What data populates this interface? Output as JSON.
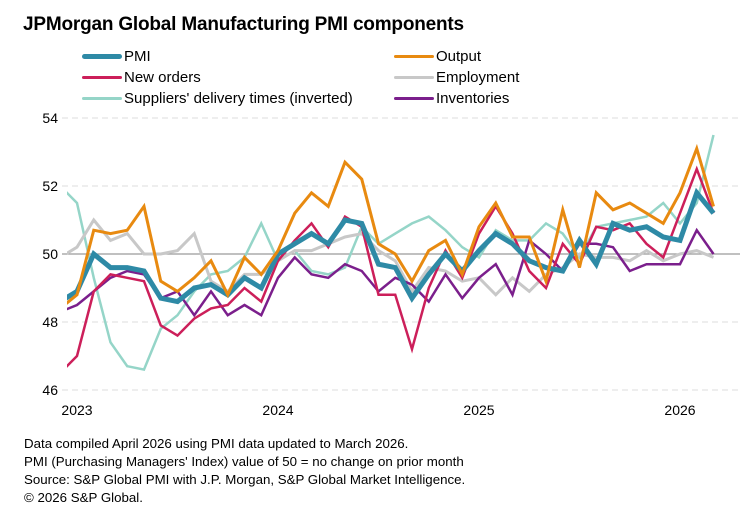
{
  "chart_data": {
    "type": "line",
    "title": "JPMorgan Global Manufacturing PMI components",
    "xlabel": "",
    "ylabel": "",
    "ylim": [
      46,
      54
    ],
    "yticks": [
      "46",
      "48",
      "50",
      "52",
      "54"
    ],
    "xticks": [
      "2023",
      "2024",
      "2025",
      "2026"
    ],
    "grid": true,
    "legend": "top",
    "x": [
      "Dec 2022",
      "Jan 2023",
      "Feb 2023",
      "Mar 2023",
      "Apr 2023",
      "May 2023",
      "Jun 2023",
      "Jul 2023",
      "Aug 2023",
      "Sep 2023",
      "Oct 2023",
      "Nov 2023",
      "Dec 2023",
      "Jan 2024",
      "Feb 2024",
      "Mar 2024",
      "Apr 2024",
      "May 2024",
      "Jun 2024",
      "Jul 2024",
      "Aug 2024",
      "Sep 2024",
      "Oct 2024",
      "Nov 2024",
      "Dec 2024",
      "Jan 2025",
      "Feb 2025",
      "Mar 2025",
      "Apr 2025",
      "May 2025",
      "Jun 2025",
      "Jul 2025",
      "Aug 2025",
      "Sep 2025",
      "Oct 2025",
      "Nov 2025",
      "Dec 2025",
      "Jan 2026",
      "Feb 2026",
      "Mar 2026"
    ],
    "series": [
      {
        "name": "PMI",
        "color": "#2e8aa6",
        "width": 5,
        "values": [
          48.6,
          48.9,
          50.0,
          49.6,
          49.6,
          49.5,
          48.7,
          48.6,
          49.0,
          49.1,
          48.8,
          49.3,
          49.0,
          50.0,
          50.3,
          50.6,
          50.3,
          51.0,
          50.9,
          49.7,
          49.6,
          48.7,
          49.4,
          50.0,
          49.5,
          50.1,
          50.6,
          50.3,
          49.8,
          49.6,
          49.5,
          50.4,
          49.7,
          50.9,
          50.7,
          50.8,
          50.5,
          50.4,
          51.8,
          51.2
        ]
      },
      {
        "name": "Output",
        "color": "#e88a10",
        "width": 3,
        "values": [
          48.4,
          48.8,
          50.7,
          50.6,
          50.7,
          51.4,
          49.2,
          48.9,
          49.3,
          49.8,
          48.8,
          49.9,
          49.4,
          50.1,
          51.2,
          51.8,
          51.4,
          52.7,
          52.2,
          50.3,
          50.0,
          49.2,
          50.1,
          50.4,
          49.4,
          50.8,
          51.5,
          50.5,
          50.5,
          49.2,
          51.3,
          49.6,
          51.8,
          51.3,
          51.5,
          51.2,
          50.9,
          51.8,
          53.1,
          51.4
        ]
      },
      {
        "name": "New orders",
        "color": "#cc1f5a",
        "width": 2.5,
        "values": [
          46.5,
          47.0,
          48.9,
          49.4,
          49.3,
          49.2,
          47.9,
          47.6,
          48.1,
          48.4,
          48.5,
          49.0,
          48.6,
          49.8,
          50.4,
          50.9,
          50.2,
          51.1,
          50.8,
          48.8,
          48.8,
          47.2,
          49.0,
          50.1,
          49.3,
          50.6,
          51.4,
          50.6,
          49.5,
          49.0,
          50.3,
          49.7,
          50.8,
          50.7,
          50.9,
          50.3,
          49.9,
          51.2,
          52.5,
          51.2
        ]
      },
      {
        "name": "Employment",
        "color": "#c8c8c8",
        "width": 3,
        "values": [
          49.9,
          50.2,
          51.0,
          50.4,
          50.6,
          50.0,
          50.0,
          50.1,
          50.6,
          49.2,
          48.9,
          49.4,
          49.4,
          49.8,
          50.1,
          50.1,
          50.3,
          50.5,
          50.6,
          50.1,
          49.8,
          48.9,
          49.6,
          49.5,
          49.2,
          49.3,
          48.8,
          49.3,
          48.9,
          49.4,
          49.6,
          50.0,
          49.9,
          49.9,
          49.8,
          50.1,
          49.8,
          50.0,
          50.1,
          49.9
        ]
      },
      {
        "name": "Suppliers' delivery times (inverted)",
        "color": "#95d5c8",
        "width": 2.5,
        "values": [
          52.0,
          51.5,
          49.3,
          47.4,
          46.7,
          46.6,
          47.8,
          48.2,
          48.9,
          49.4,
          49.5,
          49.9,
          50.9,
          49.8,
          50.1,
          49.5,
          49.4,
          49.6,
          50.8,
          50.3,
          50.6,
          50.9,
          51.1,
          50.7,
          50.2,
          49.9,
          50.7,
          50.4,
          50.4,
          50.9,
          50.6,
          49.9,
          50.8,
          50.9,
          51.0,
          51.1,
          51.5,
          50.9,
          51.5,
          53.5
        ]
      },
      {
        "name": "Inventories",
        "color": "#7b1f8c",
        "width": 2.5,
        "values": [
          48.3,
          48.5,
          48.9,
          49.3,
          49.5,
          49.4,
          48.7,
          48.9,
          48.2,
          48.9,
          48.2,
          48.5,
          48.2,
          49.3,
          49.9,
          49.4,
          49.3,
          49.7,
          49.5,
          48.9,
          49.3,
          49.1,
          48.6,
          49.4,
          48.7,
          49.3,
          49.7,
          48.8,
          50.4,
          50.0,
          49.5,
          50.3,
          50.3,
          50.2,
          49.5,
          49.7,
          49.7,
          49.7,
          50.7,
          50.0
        ]
      }
    ]
  },
  "legend_columns": [
    [
      "PMI",
      "New orders",
      "Suppliers' delivery times (inverted)"
    ],
    [
      "Output",
      "Employment",
      "Inventories"
    ]
  ],
  "notes": [
    "Data compiled April 2026 using PMI data updated to March 2026.",
    "PMI (Purchasing Managers' Index) value of 50 = no change on prior month",
    "Source: S&P Global PMI with J.P. Morgan, S&P Global Market Intelligence.",
    "© 2026 S&P Global."
  ]
}
